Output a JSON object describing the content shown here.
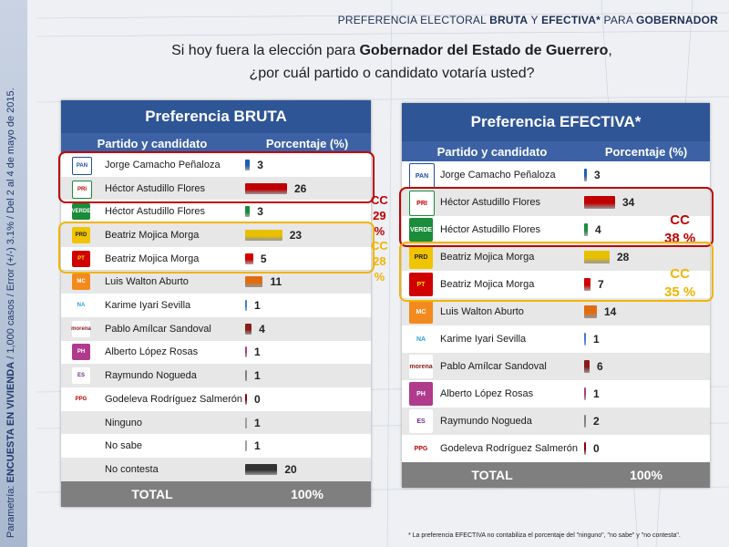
{
  "header": {
    "p1": "PREFERENCIA ELECTORAL ",
    "b1": "BRUTA",
    "p2": " Y ",
    "b2": "EFECTIVA*",
    "p3": " PARA ",
    "b3": "GOBERNADOR"
  },
  "question": {
    "l1a": "Si hoy fuera la elección para ",
    "l1b": "Gobernador del Estado de Guerrero",
    "l1c": ",",
    "line2": "¿por cuál partido o candidato votaría usted?"
  },
  "side": {
    "prefix": "Parametría: ",
    "bold": "ENCUESTA EN VIVIENDA",
    "rest": "  /  1,000 casos / Error (+/-) 3.1% / Del 2 al 4 de mayo de 2015."
  },
  "col_partido": "Partido y candidato",
  "col_pct": "Porcentaje (%)",
  "total_label": "TOTAL",
  "total_value": "100%",
  "footnote": "* La preferencia EFECTIVA no contabiliza el porcentaje del \"ninguno\", \"no sabe\" y \"no contesta\".",
  "bruta_cc": {
    "pri": {
      "l1": "CC",
      "l2": "29 %"
    },
    "prd": {
      "l1": "CC",
      "l2": "28 %"
    }
  },
  "efectiva_cc": {
    "pri": {
      "l1": "CC",
      "l2": "38 %"
    },
    "prd": {
      "l1": "CC",
      "l2": "35 %"
    }
  },
  "chart_data": [
    {
      "type": "bar",
      "title": "Preferencia BRUTA",
      "ylabel": "Porcentaje (%)",
      "xlim": [
        0,
        26
      ],
      "categories": [
        "Jorge Camacho Peñaloza",
        "Héctor Astudillo Flores",
        "Héctor Astudillo Flores",
        "Beatriz Mojica Morga",
        "Beatriz Mojica Morga",
        "Luis Walton Aburto",
        "Karime Iyari Sevilla",
        "Pablo Amílcar Sandoval",
        "Alberto López Rosas",
        "Raymundo Nogueda",
        "Godeleva Rodríguez Salmerón",
        "Ninguno",
        "No sabe",
        "No contesta"
      ],
      "parties": [
        "PAN",
        "PRI",
        "VERDE",
        "PRD",
        "PT",
        "MOVIMIENTO CIUDADANO",
        "NUEVA ALIANZA",
        "morena",
        "HUMANISTA",
        "encuentro social",
        "PPG",
        "",
        "",
        ""
      ],
      "values": [
        3,
        26,
        3,
        23,
        5,
        11,
        1,
        4,
        1,
        1,
        0,
        1,
        1,
        20
      ],
      "colors": [
        "#1f5fb4",
        "#c00000",
        "#1a8c3a",
        "#e8c000",
        "#d00000",
        "#e06c10",
        "#3a7fd1",
        "#8b1a1a",
        "#b03a8c",
        "#7f7f7f",
        "#8b0000",
        "#a0a0a0",
        "#a0a0a0",
        "#333333"
      ]
    },
    {
      "type": "bar",
      "title": "Preferencia EFECTIVA*",
      "ylabel": "Porcentaje (%)",
      "xlim": [
        0,
        34
      ],
      "categories": [
        "Jorge Camacho Peñaloza",
        "Héctor Astudillo Flores",
        "Héctor Astudillo Flores",
        "Beatriz Mojica Morga",
        "Beatriz Mojica Morga",
        "Luis Walton Aburto",
        "Karime Iyari Sevilla",
        "Pablo Amílcar Sandoval",
        "Alberto López Rosas",
        "Raymundo Nogueda",
        "Godeleva Rodríguez Salmerón"
      ],
      "parties": [
        "PAN",
        "PRI",
        "VERDE",
        "PRD",
        "PT",
        "MOVIMIENTO CIUDADANO",
        "NUEVA ALIANZA",
        "morena",
        "HUMANISTA",
        "encuentro social",
        "PPG"
      ],
      "values": [
        3,
        34,
        4,
        28,
        7,
        14,
        1,
        6,
        1,
        2,
        0
      ],
      "colors": [
        "#1f5fb4",
        "#c00000",
        "#1a8c3a",
        "#e8c000",
        "#d00000",
        "#e06c10",
        "#3a7fd1",
        "#8b1a1a",
        "#b03a8c",
        "#7f7f7f",
        "#8b0000"
      ]
    }
  ]
}
